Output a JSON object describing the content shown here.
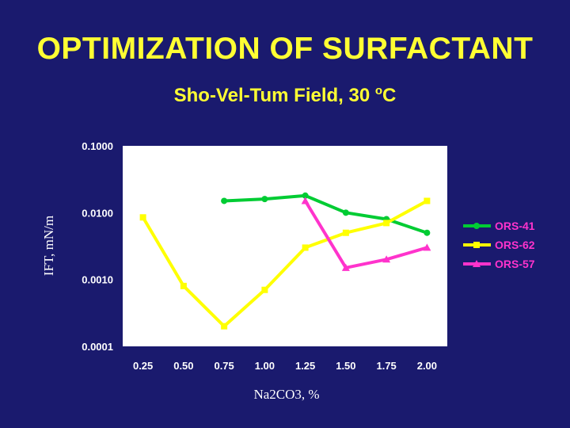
{
  "slide": {
    "title": "OPTIMIZATION OF SURFACTANT",
    "subtitle_main": "Sho-Vel-Tum Field, 30 ",
    "subtitle_sup": "o",
    "subtitle_end": "C"
  },
  "chart_data": {
    "type": "line",
    "xlabel": "Na2CO3, %",
    "ylabel": "IFT, mN/m",
    "y_scale": "log",
    "ylim": [
      0.0001,
      0.1
    ],
    "xlim": [
      0.125,
      2.125
    ],
    "x_ticks": [
      "0.25",
      "0.50",
      "0.75",
      "1.00",
      "1.25",
      "1.50",
      "1.75",
      "2.00"
    ],
    "y_ticks": [
      "0.1000",
      "0.0100",
      "0.0010",
      "0.0001"
    ],
    "grid": false,
    "legend_position": "right",
    "series": [
      {
        "name": "ORS-41",
        "color": "#00cc33",
        "marker": "circle",
        "x": [
          0.75,
          1.0,
          1.25,
          1.5,
          1.75,
          2.0
        ],
        "y": [
          0.015,
          0.016,
          0.018,
          0.01,
          0.008,
          0.005
        ]
      },
      {
        "name": "ORS-62",
        "color": "#ffff00",
        "marker": "square",
        "x": [
          0.25,
          0.5,
          0.75,
          1.0,
          1.25,
          1.5,
          1.75,
          2.0
        ],
        "y": [
          0.0085,
          0.0008,
          0.0002,
          0.0007,
          0.003,
          0.005,
          0.007,
          0.015
        ]
      },
      {
        "name": "ORS-57",
        "color": "#ff33cc",
        "marker": "triangle",
        "x": [
          1.25,
          1.5,
          1.75,
          2.0
        ],
        "y": [
          0.015,
          0.0015,
          0.002,
          0.003
        ]
      }
    ]
  }
}
